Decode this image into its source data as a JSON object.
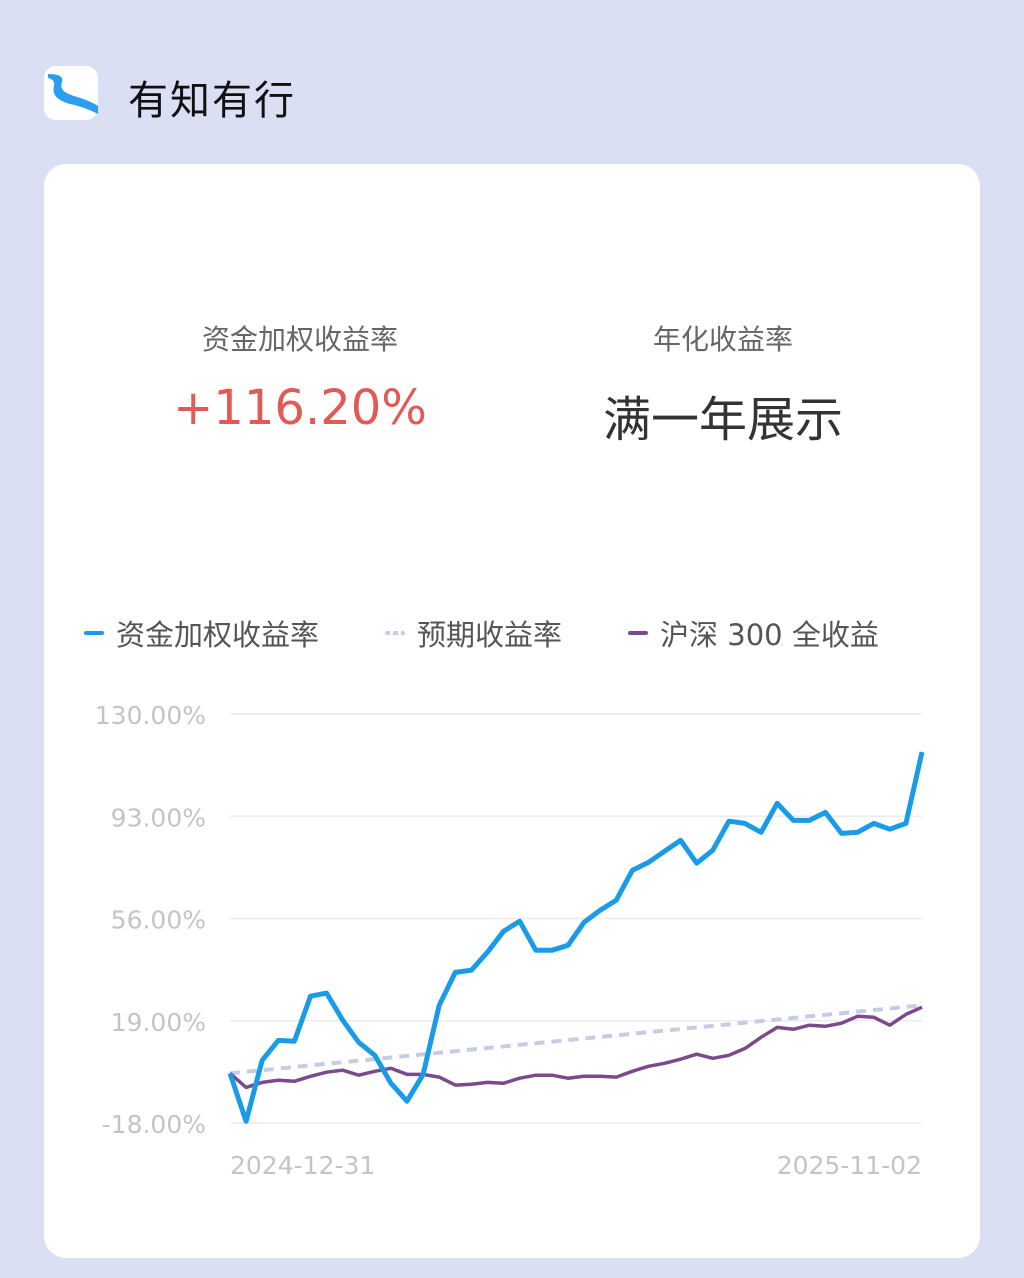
{
  "app": {
    "title": "有知有行",
    "icon": "river-logo-icon"
  },
  "stats": [
    {
      "label": "资金加权收益率",
      "value": "+116.20%",
      "color": "#e05a57"
    },
    {
      "label": "年化收益率",
      "value": "满一年展示",
      "color": "#333333"
    }
  ],
  "chart_data": {
    "type": "line",
    "legend": [
      "资金加权收益率",
      "预期收益率",
      "沪深 300 全收益"
    ],
    "legend_placement": "top",
    "yticks": [
      "130.00%",
      "93.00%",
      "56.00%",
      "19.00%",
      "-18.00%"
    ],
    "ylim": [
      -18,
      130
    ],
    "xticks": [
      "2024-12-31",
      "2025-11-02"
    ],
    "grid": true,
    "series": [
      {
        "name": "资金加权收益率",
        "color": "#1a9be8",
        "style": "solid",
        "values": [
          0,
          -17.4,
          4.7,
          11.9,
          11.6,
          27.9,
          29.0,
          19.2,
          11.2,
          6.5,
          -3.6,
          -10.1,
          -0.4,
          24.6,
          36.5,
          37.3,
          43.8,
          51.4,
          55.0,
          44.5,
          44.5,
          46.3,
          54.6,
          59.0,
          62.6,
          73.4,
          76.3,
          80.3,
          84.3,
          76.0,
          80.7,
          91.2,
          90.4,
          87.2,
          97.7,
          91.5,
          91.5,
          94.4,
          86.8,
          87.2,
          90.4,
          88.3,
          90.4,
          116.2
        ]
      },
      {
        "name": "预期收益率",
        "color": "#c5cde3",
        "style": "dotted",
        "values": [
          0,
          24.6
        ]
      },
      {
        "name": "沪深 300 全收益",
        "color": "#7b4a8c",
        "style": "solid",
        "values": [
          0,
          -5.1,
          -3.3,
          -2.5,
          -2.9,
          -1.1,
          0.4,
          1.1,
          -0.7,
          0.7,
          1.8,
          -0.4,
          -0.4,
          -1.4,
          -4.3,
          -4.0,
          -3.3,
          -3.6,
          -1.8,
          -0.7,
          -0.7,
          -1.8,
          -1.1,
          -1.1,
          -1.4,
          0.7,
          2.5,
          3.6,
          5.1,
          6.9,
          5.4,
          6.5,
          9.0,
          13.0,
          16.6,
          15.9,
          17.4,
          17.0,
          18.1,
          20.6,
          20.3,
          17.4,
          21.3,
          23.9
        ]
      }
    ]
  }
}
